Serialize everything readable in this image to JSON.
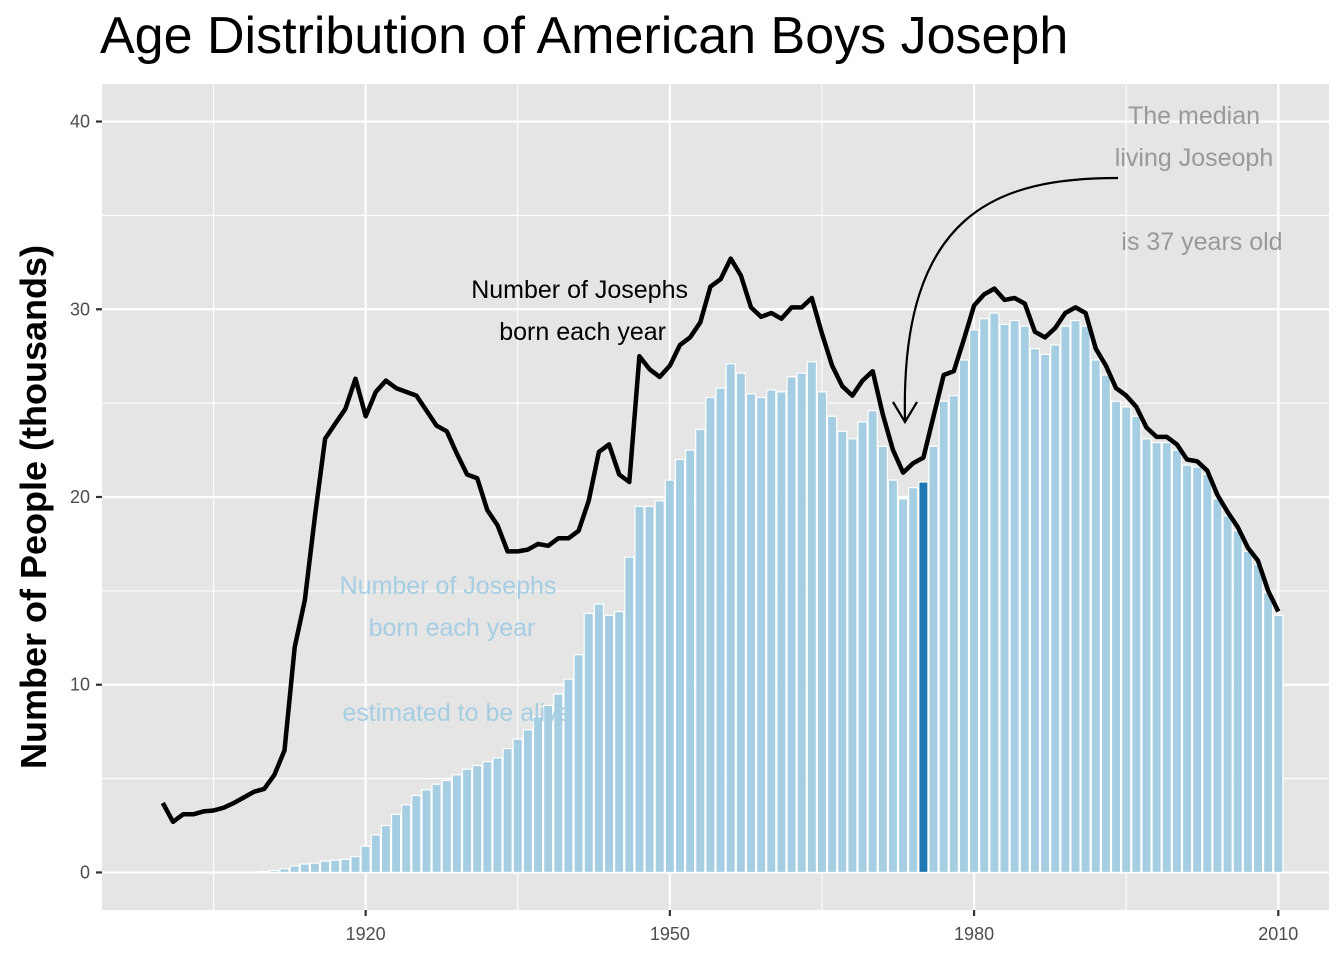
{
  "chart_data": {
    "type": "bar",
    "title": "Age Distribution of American Boys Joseph",
    "xlabel": "",
    "ylabel": "Number of People (thousands)",
    "xlim": [
      1894,
      2015
    ],
    "ylim": [
      -2,
      42
    ],
    "x_ticks": [
      1920,
      1950,
      1980,
      2010
    ],
    "x_tick_labels": [
      "1920",
      "1950",
      "1980",
      "2010"
    ],
    "y_ticks": [
      0,
      10,
      20,
      30,
      40
    ],
    "y_tick_labels": [
      "0",
      "10",
      "20",
      "30",
      "40"
    ],
    "grid": true,
    "colors": {
      "panel": "#e5e5e5",
      "grid": "#ffffff",
      "bar": "#a6cee3",
      "bar_highlight": "#1f78b4",
      "bar_outline": "#ffffff",
      "line": "#000000",
      "annotation_bar_text": "#a6cee3",
      "annotation_median_text": "#999999"
    },
    "highlight_year": 1975,
    "years": [
      1900,
      1901,
      1902,
      1903,
      1904,
      1905,
      1906,
      1907,
      1908,
      1909,
      1910,
      1911,
      1912,
      1913,
      1914,
      1915,
      1916,
      1917,
      1918,
      1919,
      1920,
      1921,
      1922,
      1923,
      1924,
      1925,
      1926,
      1927,
      1928,
      1929,
      1930,
      1931,
      1932,
      1933,
      1934,
      1935,
      1936,
      1937,
      1938,
      1939,
      1940,
      1941,
      1942,
      1943,
      1944,
      1945,
      1946,
      1947,
      1948,
      1949,
      1950,
      1951,
      1952,
      1953,
      1954,
      1955,
      1956,
      1957,
      1958,
      1959,
      1960,
      1961,
      1962,
      1963,
      1964,
      1965,
      1966,
      1967,
      1968,
      1969,
      1970,
      1971,
      1972,
      1973,
      1974,
      1975,
      1976,
      1977,
      1978,
      1979,
      1980,
      1981,
      1982,
      1983,
      1984,
      1985,
      1986,
      1987,
      1988,
      1989,
      1990,
      1991,
      1992,
      1993,
      1994,
      1995,
      1996,
      1997,
      1998,
      1999,
      2000,
      2001,
      2002,
      2003,
      2004,
      2005,
      2006,
      2007,
      2008,
      2009,
      2010
    ],
    "series": [
      {
        "name": "Number of Josephs born each year estimated to be alive",
        "type": "bar",
        "values": [
          0,
          0,
          0,
          0,
          0,
          0,
          0,
          0,
          0,
          0,
          0.05,
          0.1,
          0.2,
          0.35,
          0.45,
          0.5,
          0.6,
          0.65,
          0.7,
          0.85,
          1.4,
          2.0,
          2.5,
          3.1,
          3.6,
          4.1,
          4.4,
          4.7,
          4.9,
          5.2,
          5.5,
          5.7,
          5.9,
          6.1,
          6.6,
          7.1,
          7.6,
          8.3,
          8.9,
          9.5,
          10.3,
          11.6,
          13.8,
          14.3,
          13.7,
          13.9,
          16.8,
          19.5,
          19.5,
          19.8,
          20.9,
          22.0,
          22.5,
          23.6,
          25.3,
          25.8,
          27.1,
          26.6,
          25.5,
          25.3,
          25.7,
          25.6,
          26.4,
          26.6,
          27.2,
          25.6,
          24.3,
          23.5,
          23.1,
          24.0,
          24.6,
          22.7,
          20.9,
          19.9,
          20.5,
          20.8,
          22.7,
          25.1,
          25.4,
          27.3,
          28.9,
          29.5,
          29.8,
          29.2,
          29.4,
          29.1,
          27.9,
          27.6,
          28.1,
          29.1,
          29.4,
          29.1,
          27.3,
          26.5,
          25.1,
          24.8,
          24.3,
          23.1,
          22.9,
          22.9,
          22.5,
          21.7,
          21.6,
          21.2,
          19.9,
          19.0,
          18.2,
          17.1,
          16.4,
          14.9,
          13.7
        ]
      },
      {
        "name": "Number of Josephs born each year",
        "type": "line",
        "values": [
          3.7,
          2.7,
          3.1,
          3.1,
          3.25,
          3.3,
          3.45,
          3.7,
          4.0,
          4.3,
          4.45,
          5.2,
          6.5,
          12.0,
          14.5,
          19.0,
          23.1,
          23.9,
          24.7,
          26.3,
          24.3,
          25.6,
          26.2,
          25.8,
          25.6,
          25.4,
          24.6,
          23.8,
          23.5,
          22.3,
          21.2,
          21.0,
          19.3,
          18.5,
          17.1,
          17.1,
          17.2,
          17.5,
          17.4,
          17.8,
          17.8,
          18.2,
          19.8,
          22.4,
          22.8,
          21.2,
          20.8,
          27.5,
          26.8,
          26.4,
          27.0,
          28.1,
          28.5,
          29.3,
          31.2,
          31.6,
          32.7,
          31.8,
          30.1,
          29.6,
          29.8,
          29.5,
          30.1,
          30.1,
          30.6,
          28.7,
          27.0,
          25.9,
          25.4,
          26.2,
          26.7,
          24.4,
          22.5,
          21.3,
          21.8,
          22.1,
          24.3,
          26.5,
          26.7,
          28.4,
          30.2,
          30.8,
          31.1,
          30.5,
          30.6,
          30.3,
          28.8,
          28.5,
          29.0,
          29.8,
          30.1,
          29.8,
          27.9,
          27.0,
          25.8,
          25.4,
          24.8,
          23.7,
          23.2,
          23.2,
          22.8,
          22.0,
          21.9,
          21.4,
          20.1,
          19.2,
          18.4,
          17.3,
          16.6,
          15.0,
          13.9
        ]
      }
    ],
    "annotations": {
      "line_label": [
        "Number of Josephs",
        "born each year"
      ],
      "bar_label": [
        "Number of Josephs",
        "born each year",
        "",
        "estimated to be alive"
      ],
      "median_label": [
        "The median",
        "living Joseoph",
        "",
        "is 37 years old"
      ]
    }
  }
}
